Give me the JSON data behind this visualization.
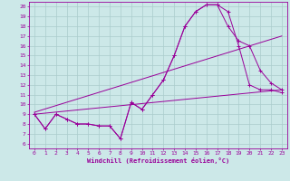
{
  "xlabel": "Windchill (Refroidissement éolien,°C)",
  "bg_color": "#cce8e8",
  "line_color": "#990099",
  "xlim": [
    -0.5,
    23.5
  ],
  "ylim": [
    5.5,
    20.5
  ],
  "xticks": [
    0,
    1,
    2,
    3,
    4,
    5,
    6,
    7,
    8,
    9,
    10,
    11,
    12,
    13,
    14,
    15,
    16,
    17,
    18,
    19,
    20,
    21,
    22,
    23
  ],
  "yticks": [
    6,
    7,
    8,
    9,
    10,
    11,
    12,
    13,
    14,
    15,
    16,
    17,
    18,
    19,
    20
  ],
  "grid_color": "#aacccc",
  "line1_x": [
    0,
    1,
    2,
    3,
    4,
    5,
    6,
    7,
    8,
    9,
    10,
    11,
    12,
    13,
    14,
    15,
    16,
    17,
    18,
    19,
    20,
    21,
    22,
    23
  ],
  "line1_y": [
    9,
    7.5,
    9,
    8.5,
    8,
    8,
    7.8,
    7.8,
    6.5,
    10.2,
    9.5,
    11,
    12.5,
    15,
    18,
    19.5,
    20.2,
    20.2,
    19.5,
    16,
    12,
    11.5,
    11.5,
    11.2
  ],
  "line2_x": [
    0,
    1,
    2,
    3,
    4,
    5,
    6,
    7,
    8,
    9,
    10,
    11,
    12,
    13,
    14,
    15,
    16,
    17,
    18,
    19,
    20,
    21,
    22,
    23
  ],
  "line2_y": [
    9,
    7.5,
    9,
    8.5,
    8,
    8,
    7.8,
    7.8,
    6.5,
    10.2,
    9.5,
    11,
    12.5,
    15,
    18,
    19.5,
    20.2,
    20.2,
    18,
    16.5,
    16,
    13.5,
    12.2,
    11.5
  ],
  "line3_x": [
    0,
    23
  ],
  "line3_y": [
    9.0,
    11.5
  ],
  "line4_x": [
    0,
    23
  ],
  "line4_y": [
    9.2,
    17.0
  ]
}
